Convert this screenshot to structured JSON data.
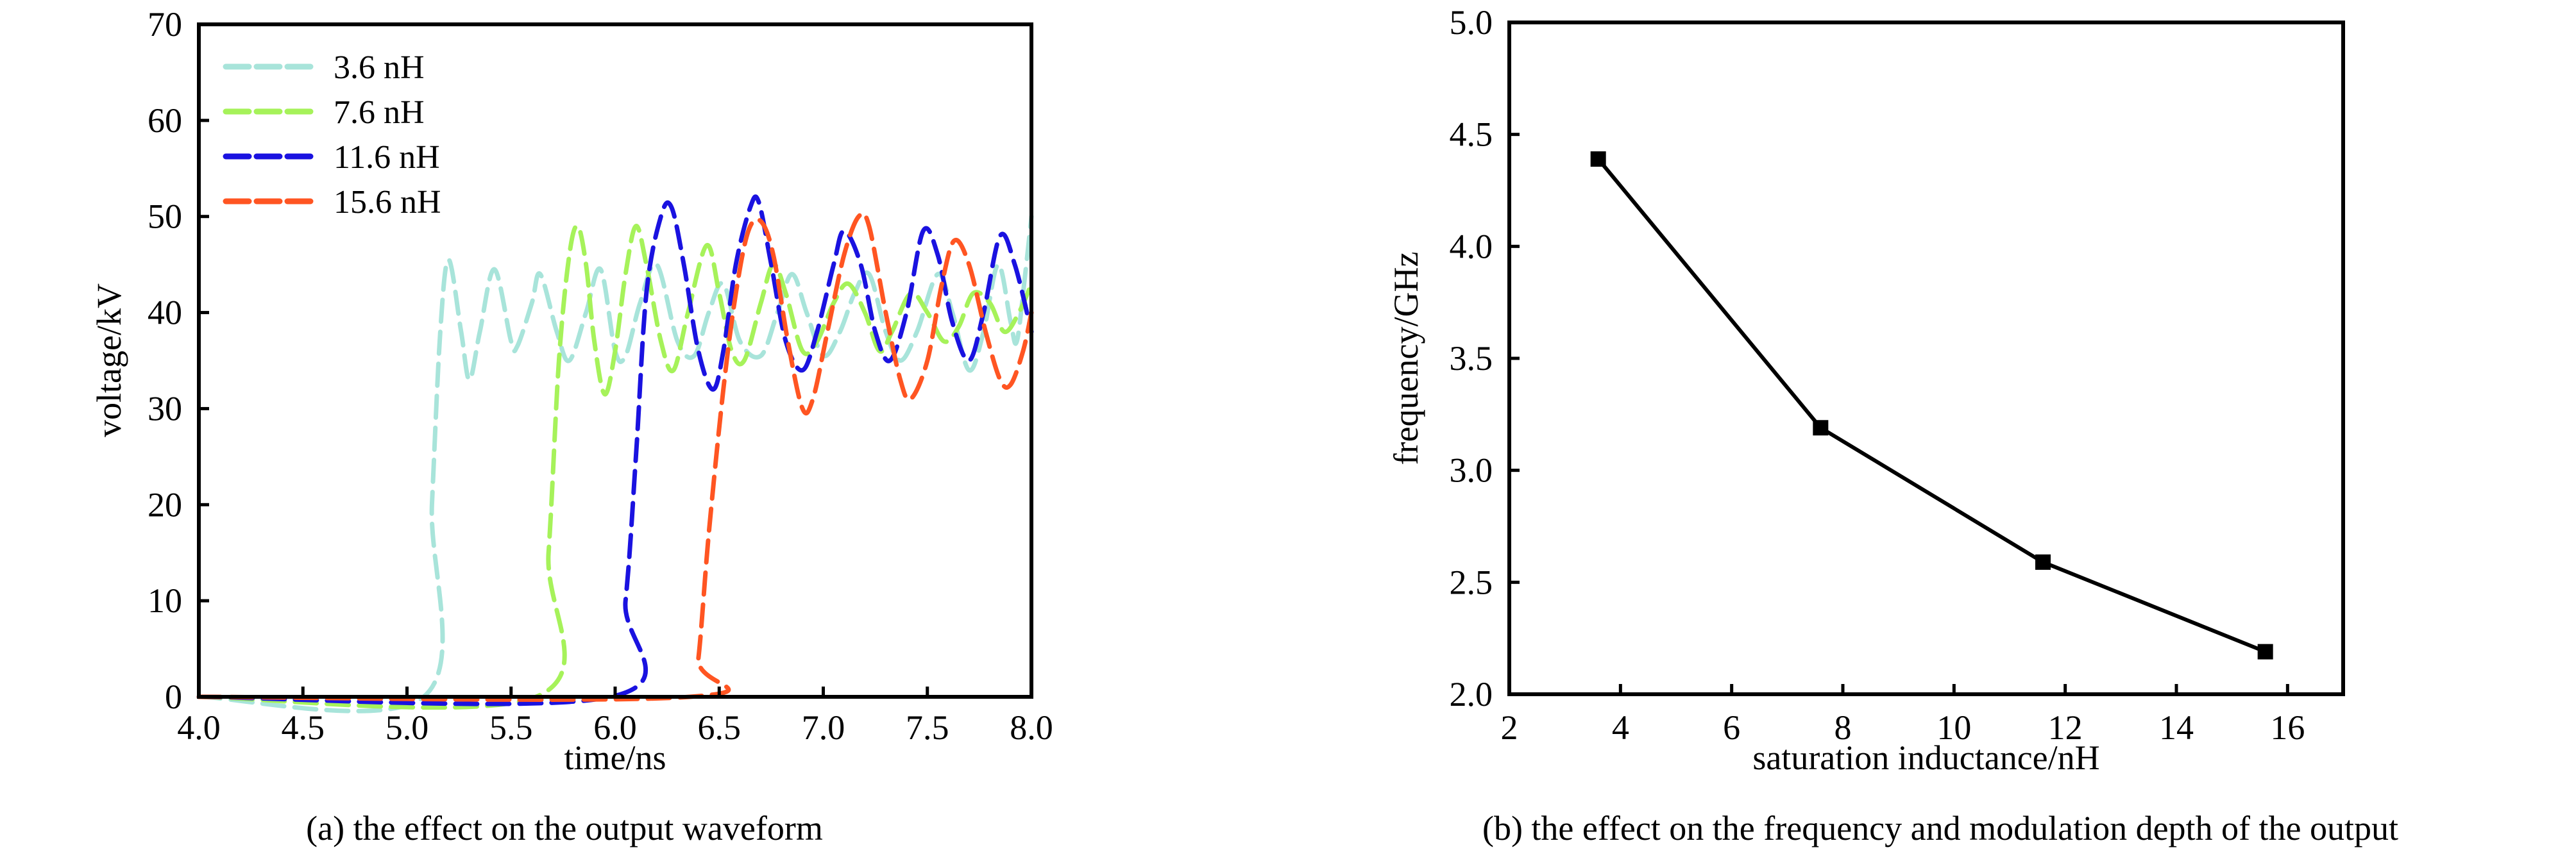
{
  "chart_data": [
    {
      "id": "a",
      "type": "line",
      "caption": "(a) the effect on the output waveform",
      "xlabel": "time/ns",
      "ylabel": "voltage/kV",
      "xlim": [
        4.0,
        8.0
      ],
      "ylim": [
        0,
        70
      ],
      "xticks": [
        "4.0",
        "4.5",
        "5.0",
        "5.5",
        "6.0",
        "6.5",
        "7.0",
        "7.5",
        "8.0"
      ],
      "yticks": [
        "0",
        "10",
        "20",
        "30",
        "40",
        "50",
        "60",
        "70"
      ],
      "legend_position": "top-left",
      "grid": false,
      "line_style": "dashed",
      "series": [
        {
          "name": "3.6 nH",
          "color": "#a8e4da",
          "x": [
            4.0,
            5.08,
            5.12,
            5.16,
            5.2,
            5.26,
            5.3,
            5.35,
            5.42,
            5.5,
            5.53,
            5.6,
            5.64,
            5.72,
            5.78,
            5.86,
            5.93,
            6.0,
            6.05,
            6.12,
            6.2,
            6.3,
            6.38,
            6.45,
            6.52,
            6.6,
            6.7,
            6.78,
            6.85,
            6.92,
            7.0,
            7.08,
            7.15,
            7.22,
            7.3,
            7.37,
            7.45,
            7.55,
            7.62,
            7.7,
            7.77,
            7.84,
            7.9,
            7.93,
            7.97,
            8.0
          ],
          "y": [
            0,
            0,
            20,
            38,
            45.5,
            38,
            33,
            38,
            44.5,
            37,
            36.5,
            41,
            44,
            38,
            35,
            40,
            44.5,
            36,
            35.5,
            41,
            45,
            37,
            35.5,
            40,
            43,
            37,
            35.5,
            40,
            44,
            40,
            35.5,
            38,
            42,
            44,
            38,
            35,
            38,
            44,
            40,
            34,
            38,
            45,
            39,
            37,
            44,
            50
          ]
        },
        {
          "name": "7.6 nH",
          "color": "#a6f25a",
          "x": [
            4.0,
            5.62,
            5.68,
            5.73,
            5.78,
            5.82,
            5.86,
            5.9,
            5.95,
            6.0,
            6.05,
            6.1,
            6.15,
            6.22,
            6.28,
            6.35,
            6.44,
            6.5,
            6.56,
            6.62,
            6.7,
            6.76,
            6.82,
            6.9,
            6.97,
            7.05,
            7.12,
            7.2,
            7.27,
            7.33,
            7.42,
            7.5,
            7.58,
            7.65,
            7.72,
            7.8,
            7.87,
            7.94,
            8.0
          ],
          "y": [
            0,
            0,
            15,
            35,
            46,
            49,
            45,
            37,
            31.5,
            36,
            44,
            49,
            45,
            37,
            34,
            40,
            47,
            42,
            36,
            35,
            41,
            45,
            42,
            36,
            37,
            41,
            43,
            40,
            36,
            38,
            42,
            40,
            37,
            38.5,
            42,
            41,
            38,
            40,
            43
          ]
        },
        {
          "name": "11.6 nH",
          "color": "#1a12e0",
          "x": [
            4.0,
            5.98,
            6.05,
            6.1,
            6.15,
            6.22,
            6.27,
            6.33,
            6.4,
            6.47,
            6.52,
            6.58,
            6.65,
            6.69,
            6.75,
            6.82,
            6.9,
            6.97,
            7.05,
            7.1,
            7.18,
            7.25,
            7.32,
            7.4,
            7.48,
            7.55,
            7.62,
            7.7,
            7.77,
            7.85,
            7.92,
            8.0
          ],
          "y": [
            0,
            0,
            10,
            25,
            42,
            50,
            51,
            45,
            36,
            32,
            36,
            45,
            51,
            51.5,
            45,
            37,
            34,
            38,
            45,
            48.5,
            45,
            38,
            35,
            40,
            48.5,
            46,
            39,
            35,
            40,
            48,
            45,
            38
          ]
        },
        {
          "name": "15.6 nH",
          "color": "#ff5522",
          "x": [
            4.0,
            6.36,
            6.4,
            6.45,
            6.52,
            6.58,
            6.64,
            6.7,
            6.76,
            6.83,
            6.9,
            6.95,
            7.02,
            7.1,
            7.17,
            7.22,
            7.3,
            7.37,
            7.42,
            7.5,
            7.57,
            7.63,
            7.7,
            7.78,
            7.85,
            7.9,
            7.96,
            8.0
          ],
          "y": [
            0,
            0,
            4,
            17,
            32,
            42,
            48.5,
            49.5,
            46,
            37,
            30,
            31,
            38,
            46,
            50,
            49,
            40,
            33,
            31,
            35,
            43,
            47.5,
            45,
            38,
            33,
            32.5,
            36,
            40
          ]
        }
      ]
    },
    {
      "id": "b",
      "type": "line",
      "caption": "(b) the effect on the frequency and modulation depth of the output",
      "xlabel": "saturation inductance/nH",
      "ylabel": "frequency/GHz",
      "xlim": [
        2,
        17
      ],
      "ylim": [
        2.0,
        5.0
      ],
      "xticks": [
        "2",
        "4",
        "6",
        "8",
        "10",
        "12",
        "14",
        "16"
      ],
      "yticks": [
        "2.0",
        "2.5",
        "3.0",
        "3.5",
        "4.0",
        "4.5",
        "5.0"
      ],
      "grid": false,
      "marker": "square",
      "color": "#000000",
      "x": [
        3.6,
        7.6,
        11.6,
        15.6
      ],
      "y": [
        4.39,
        3.19,
        2.59,
        2.19
      ]
    }
  ]
}
